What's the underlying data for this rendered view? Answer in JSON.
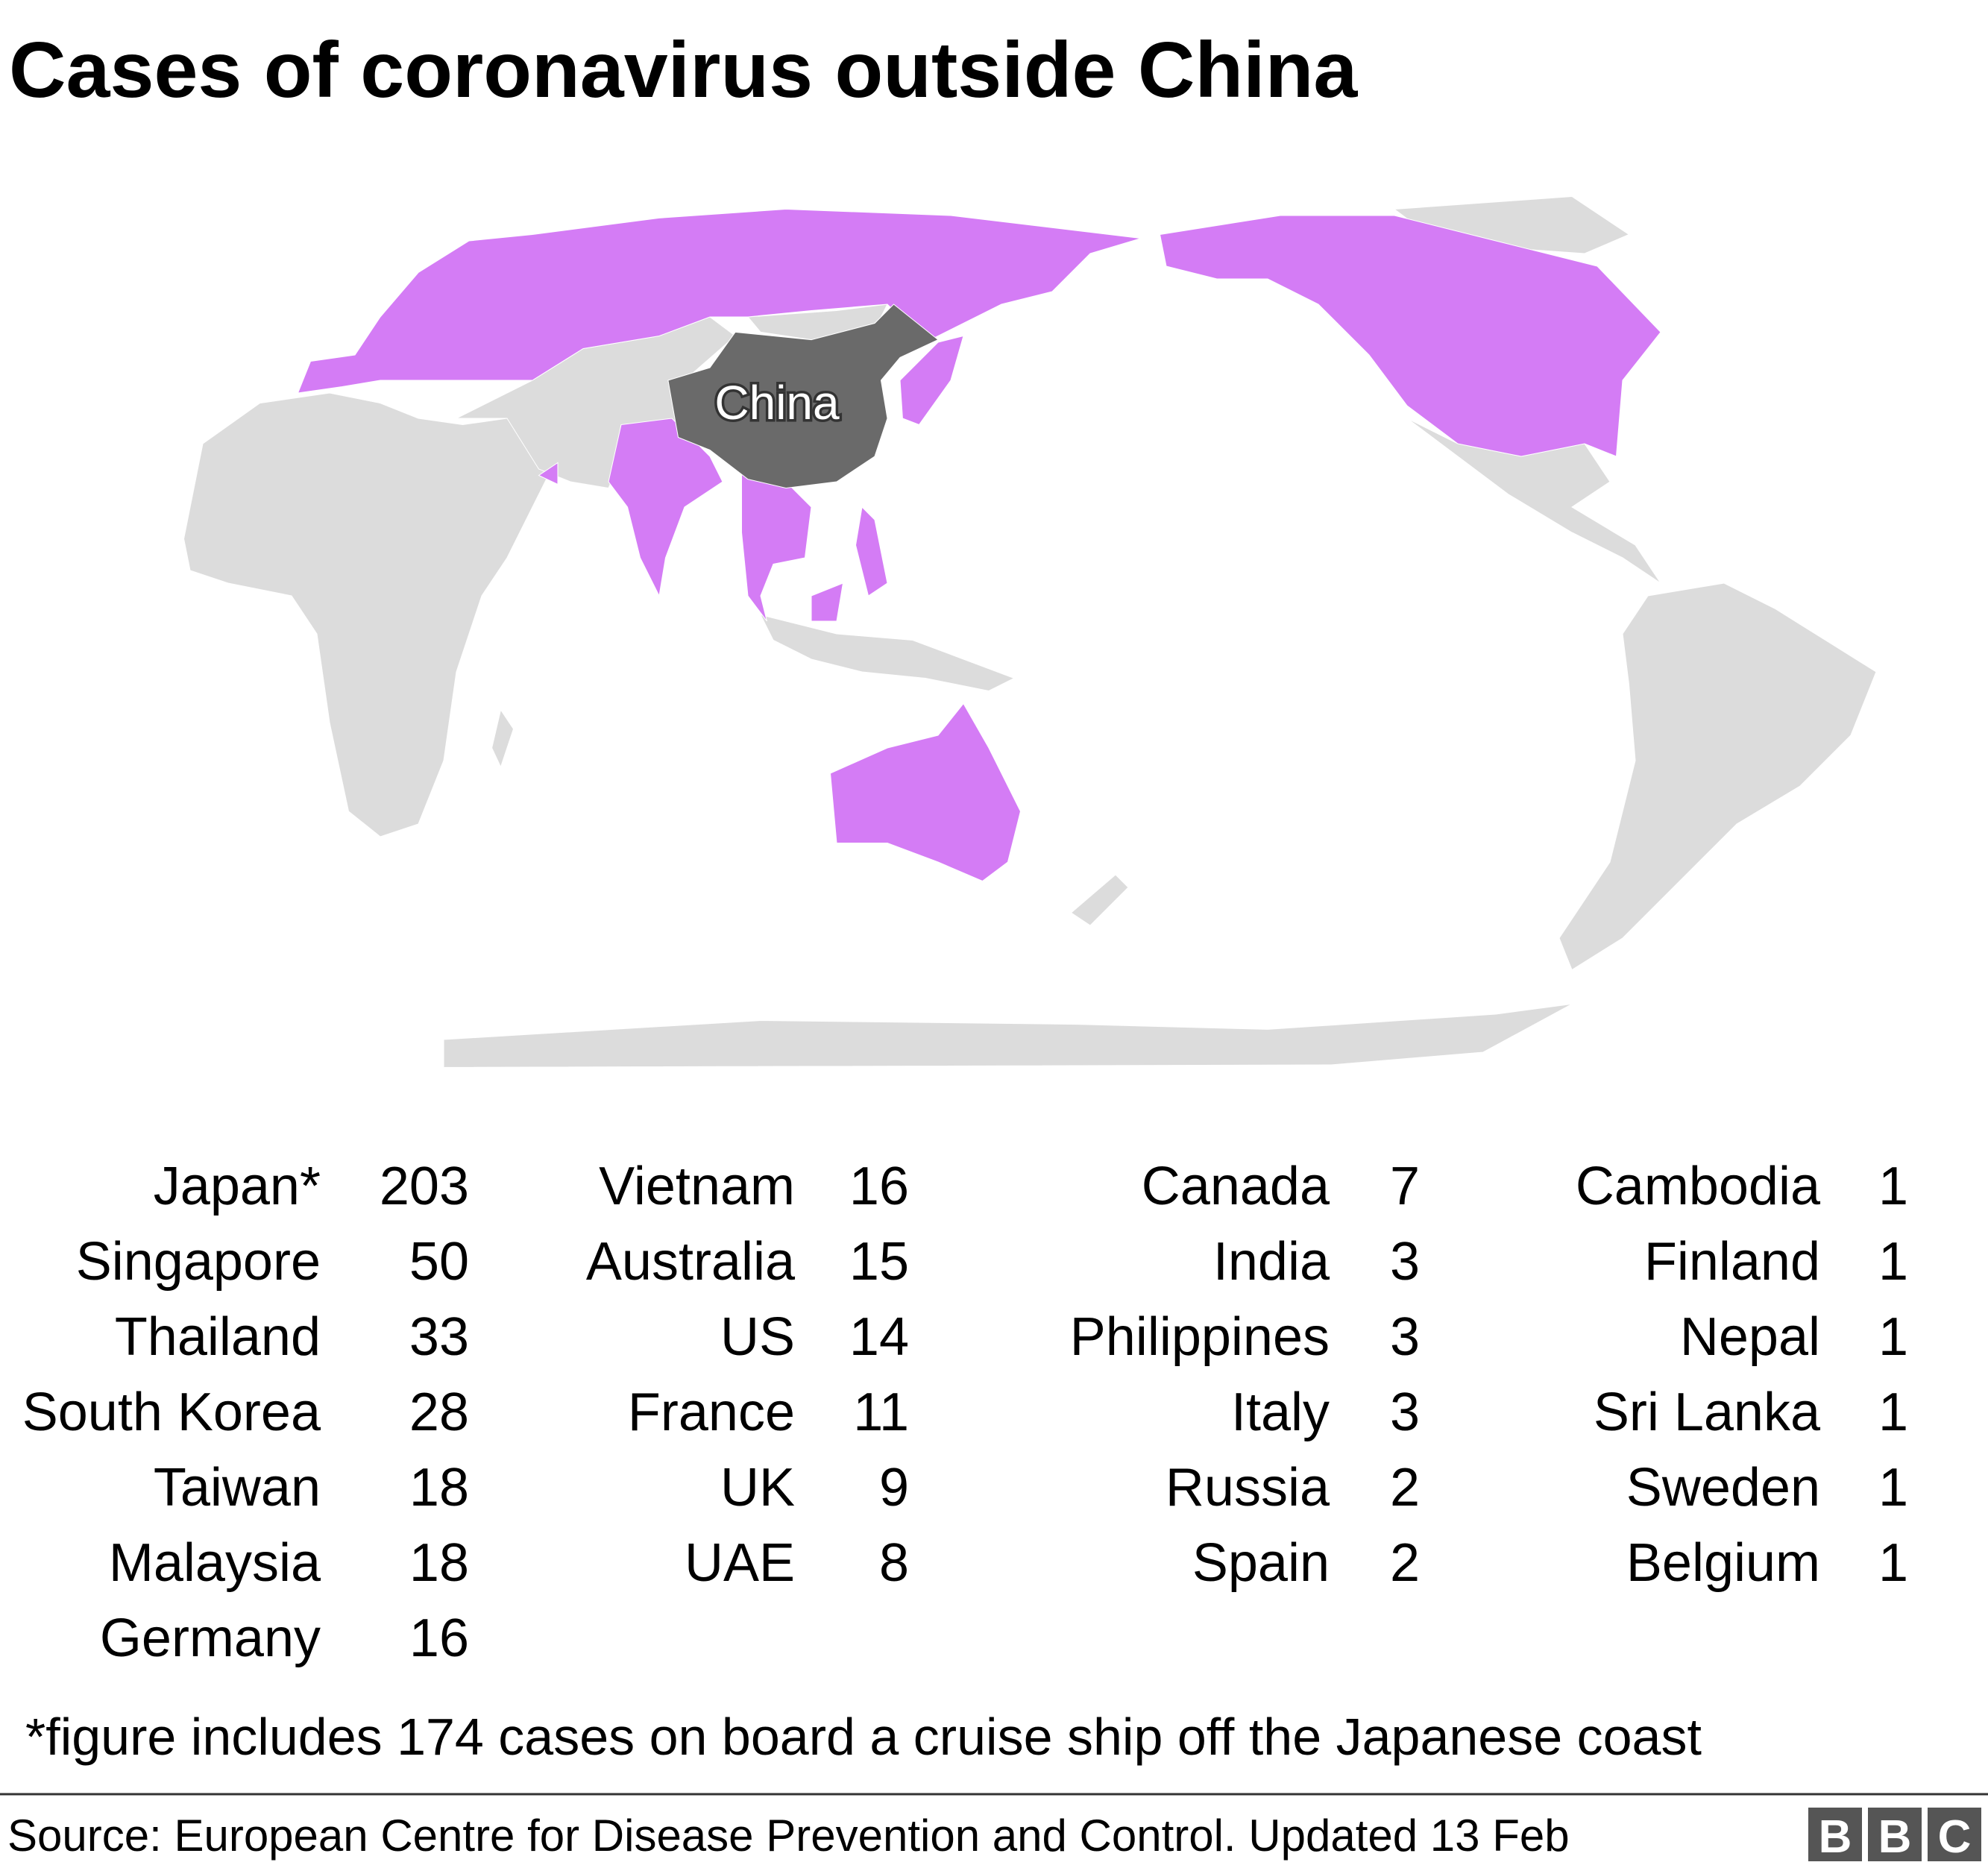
{
  "title": "Cases of coronavirus outside China",
  "map": {
    "label": "China"
  },
  "table": {
    "columns": [
      [
        {
          "country": "Japan*",
          "cases": "203"
        },
        {
          "country": "Singapore",
          "cases": "50"
        },
        {
          "country": "Thailand",
          "cases": "33"
        },
        {
          "country": "South Korea",
          "cases": "28"
        },
        {
          "country": "Taiwan",
          "cases": "18"
        },
        {
          "country": "Malaysia",
          "cases": "18"
        },
        {
          "country": "Germany",
          "cases": "16"
        }
      ],
      [
        {
          "country": "Vietnam",
          "cases": "16"
        },
        {
          "country": "Australia",
          "cases": "15"
        },
        {
          "country": "US",
          "cases": "14"
        },
        {
          "country": "France",
          "cases": "11"
        },
        {
          "country": "UK",
          "cases": "9"
        },
        {
          "country": "UAE",
          "cases": "8"
        }
      ],
      [
        {
          "country": "Canada",
          "cases": "7"
        },
        {
          "country": "India",
          "cases": "3"
        },
        {
          "country": "Philippines",
          "cases": "3"
        },
        {
          "country": "Italy",
          "cases": "3"
        },
        {
          "country": "Russia",
          "cases": "2"
        },
        {
          "country": "Spain",
          "cases": "2"
        }
      ],
      [
        {
          "country": "Cambodia",
          "cases": "1"
        },
        {
          "country": "Finland",
          "cases": "1"
        },
        {
          "country": "Nepal",
          "cases": "1"
        },
        {
          "country": "Sri Lanka",
          "cases": "1"
        },
        {
          "country": "Sweden",
          "cases": "1"
        },
        {
          "country": "Belgium",
          "cases": "1"
        }
      ]
    ]
  },
  "footnote": "*figure includes 174 cases on board a cruise ship off the Japanese coast",
  "source": "Source: European Centre for Disease Prevention and Control. Updated 13 Feb",
  "logo": [
    "B",
    "B",
    "C"
  ]
}
